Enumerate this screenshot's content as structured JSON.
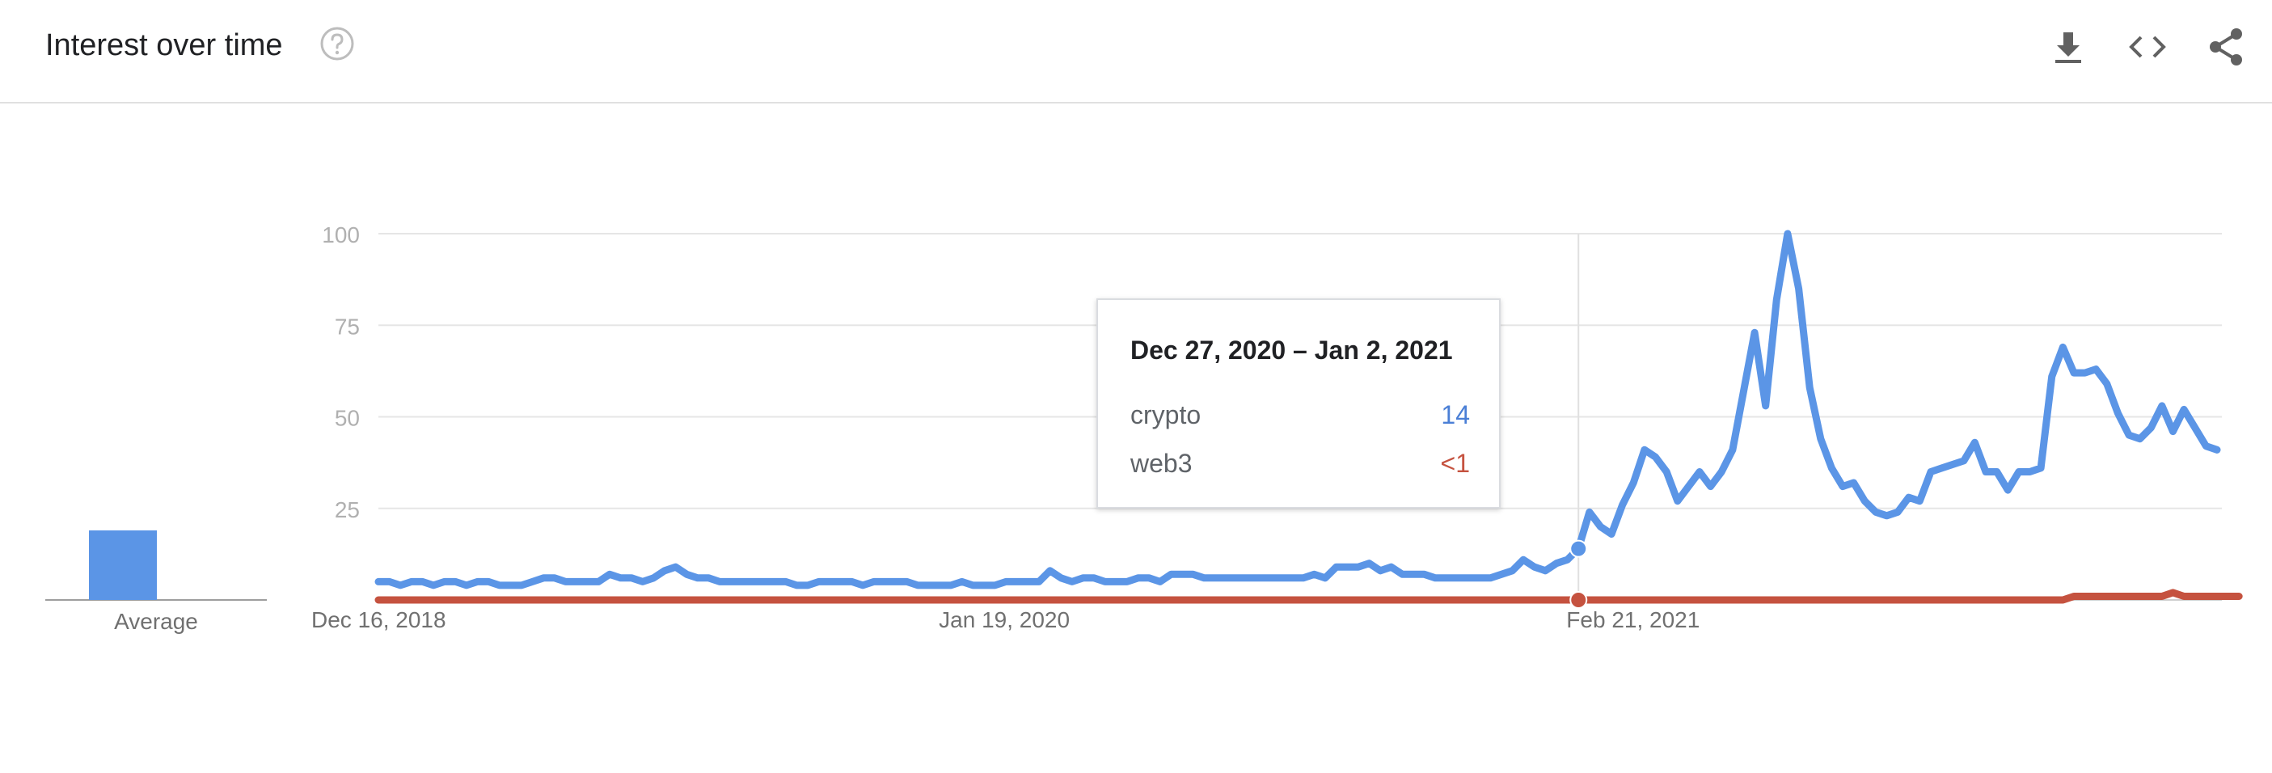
{
  "header": {
    "title": "Interest over time",
    "icons": [
      "help-icon",
      "download-icon",
      "embed-code-icon",
      "share-icon"
    ]
  },
  "average": {
    "label": "Average",
    "color": "#5b95e6"
  },
  "tooltip": {
    "date": "Dec 27, 2020 – Jan 2, 2021",
    "rows": [
      {
        "name": "crypto",
        "value": "14",
        "color": "#4a7fd6"
      },
      {
        "name": "web3",
        "value": "<1",
        "color": "#c5523f"
      }
    ]
  },
  "chart_data": {
    "type": "line",
    "title": "",
    "xlabel": "",
    "ylabel": "",
    "ylim": [
      0,
      100
    ],
    "yticks": [
      "100",
      "75",
      "50",
      "25"
    ],
    "xticks": [
      "Dec 16, 2018",
      "Jan 19, 2020",
      "Feb 21, 2021"
    ],
    "grid": true,
    "series": [
      {
        "name": "crypto",
        "color": "#5b95e6",
        "values": [
          5,
          5,
          4,
          5,
          5,
          4,
          5,
          5,
          4,
          5,
          5,
          4,
          4,
          4,
          5,
          6,
          6,
          5,
          5,
          5,
          5,
          7,
          6,
          6,
          5,
          6,
          8,
          9,
          7,
          6,
          6,
          5,
          5,
          5,
          5,
          5,
          5,
          5,
          4,
          4,
          5,
          5,
          5,
          5,
          4,
          5,
          5,
          5,
          5,
          4,
          4,
          4,
          4,
          5,
          4,
          4,
          4,
          5,
          5,
          5,
          5,
          8,
          6,
          5,
          6,
          6,
          5,
          5,
          5,
          6,
          6,
          5,
          7,
          7,
          7,
          6,
          6,
          6,
          6,
          6,
          6,
          6,
          6,
          6,
          6,
          7,
          6,
          9,
          9,
          9,
          10,
          8,
          9,
          7,
          7,
          7,
          6,
          6,
          6,
          6,
          6,
          6,
          7,
          8,
          11,
          9,
          8,
          10,
          11,
          14,
          24,
          20,
          18,
          26,
          32,
          41,
          39,
          35,
          27,
          31,
          35,
          31,
          35,
          41,
          57,
          73,
          53,
          82,
          100,
          85,
          58,
          44,
          36,
          31,
          32,
          27,
          24,
          23,
          24,
          28,
          27,
          35,
          36,
          37,
          38,
          43,
          35,
          35,
          30,
          35,
          35,
          36,
          61,
          69,
          62,
          62,
          63,
          59,
          51,
          45,
          44,
          47,
          53,
          46,
          52,
          47,
          42,
          41
        ]
      },
      {
        "name": "web3",
        "color": "#c5523f",
        "values": [
          0,
          0,
          0,
          0,
          0,
          0,
          0,
          0,
          0,
          0,
          0,
          0,
          0,
          0,
          0,
          0,
          0,
          0,
          0,
          0,
          0,
          0,
          0,
          0,
          0,
          0,
          0,
          0,
          0,
          0,
          0,
          0,
          0,
          0,
          0,
          0,
          0,
          0,
          0,
          0,
          0,
          0,
          0,
          0,
          0,
          0,
          0,
          0,
          0,
          0,
          0,
          0,
          0,
          0,
          0,
          0,
          0,
          0,
          0,
          0,
          0,
          0,
          0,
          0,
          0,
          0,
          0,
          0,
          0,
          0,
          0,
          0,
          0,
          0,
          0,
          0,
          0,
          0,
          0,
          0,
          0,
          0,
          0,
          0,
          0,
          0,
          0,
          0,
          0,
          0,
          0,
          0,
          0,
          0,
          0,
          0,
          0,
          0,
          0,
          0,
          0,
          0,
          0,
          0,
          0,
          0,
          0,
          0,
          0,
          0,
          0,
          0,
          0,
          0,
          0,
          0,
          0,
          0,
          0,
          0,
          0,
          0,
          0,
          0,
          0,
          0,
          0,
          0,
          0,
          0,
          0,
          0,
          0,
          0,
          0,
          0,
          0,
          0,
          0,
          0,
          0,
          0,
          0,
          0,
          0,
          0,
          0,
          0,
          0,
          0,
          0,
          0,
          0,
          0,
          1,
          1,
          1,
          1,
          1,
          1,
          1,
          1,
          1,
          2,
          1,
          1,
          1,
          1,
          1,
          1
        ]
      }
    ],
    "average": [
      19,
      0
    ],
    "highlight_index": 109
  }
}
